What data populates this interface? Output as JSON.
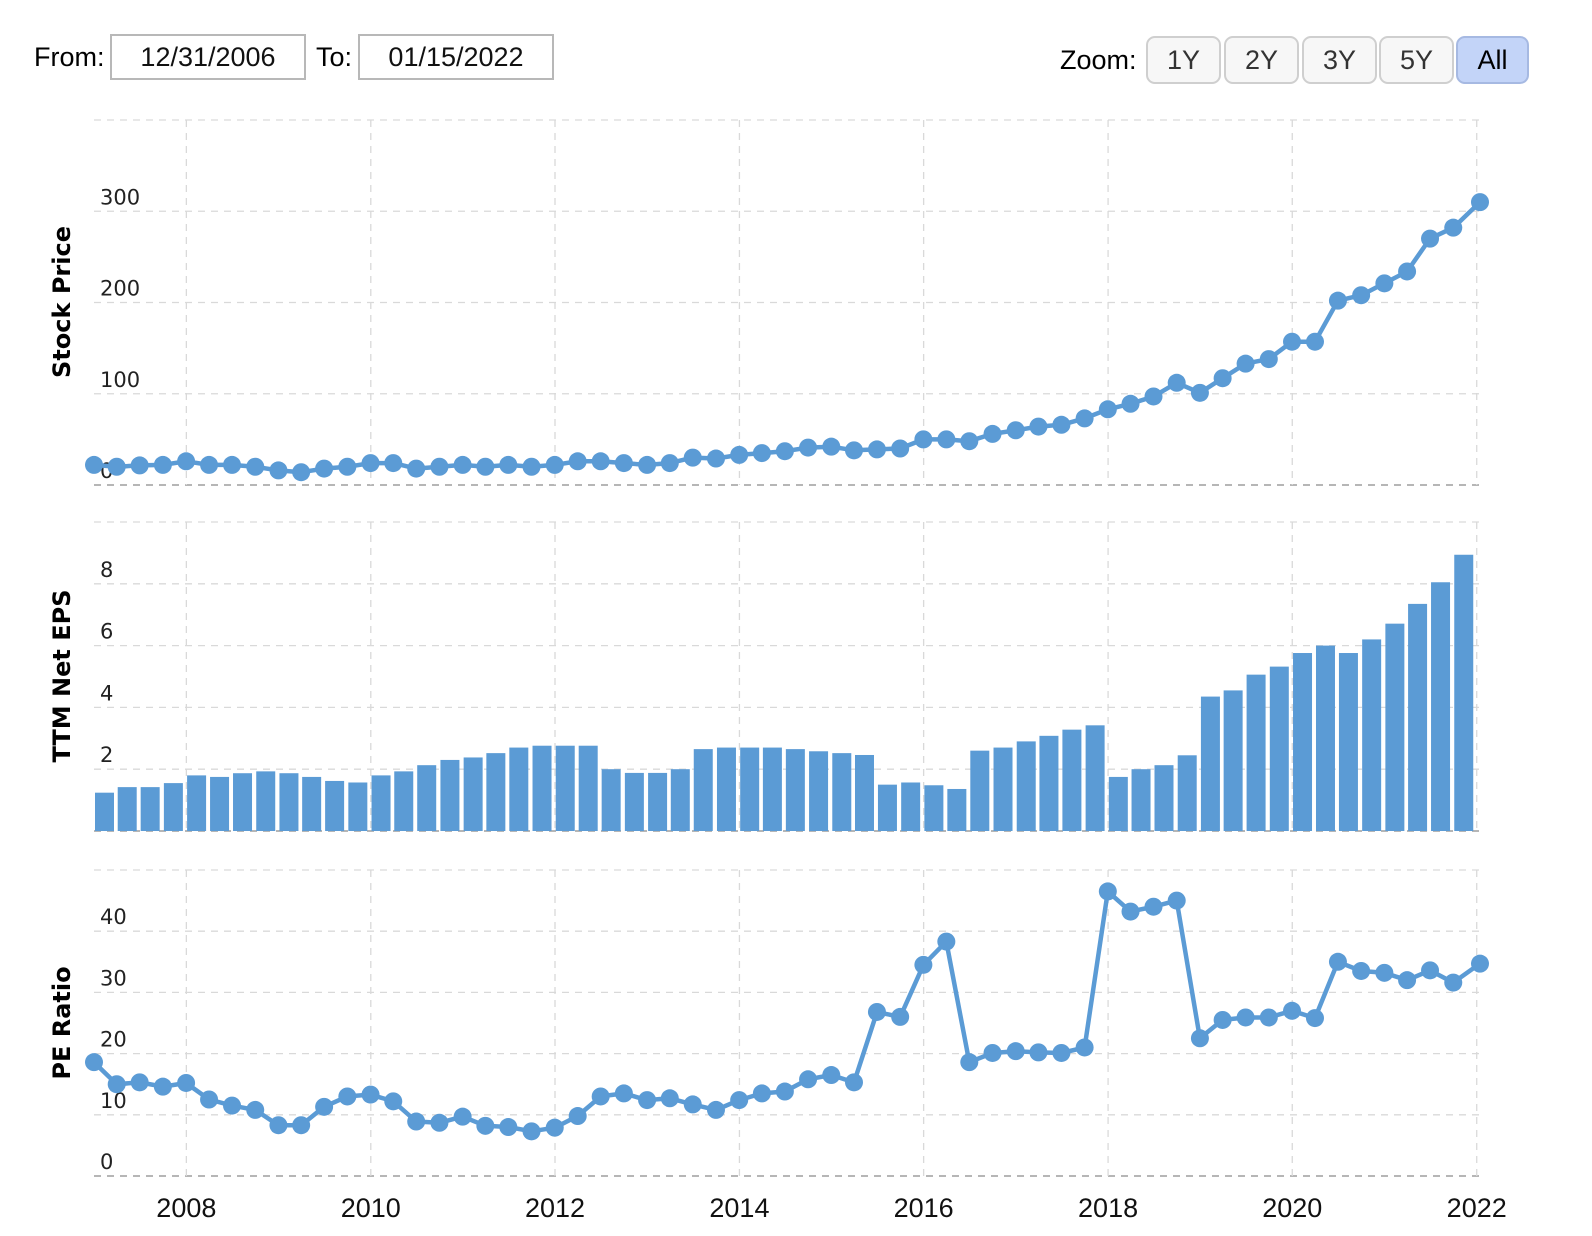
{
  "controls": {
    "from_label": "From:",
    "from_value": "12/31/2006",
    "to_label": "To:",
    "to_value": "01/15/2022",
    "zoom_label": "Zoom:",
    "zoom_options": [
      "1Y",
      "2Y",
      "3Y",
      "5Y",
      "All"
    ],
    "zoom_active": "All"
  },
  "colors": {
    "series": "#5b9bd5",
    "grid": "#d9d9d9",
    "baseline": "#9e9e9e",
    "zoom_active_bg": "#c3d4f8"
  },
  "chart_data": [
    {
      "type": "line",
      "ylabel": "Stock Price",
      "ylim": [
        0,
        400
      ],
      "yticks": [
        0,
        100,
        200,
        300
      ],
      "grid": true,
      "series": [
        {
          "name": "",
          "points": [
            [
              "2006-12-31",
              22
            ],
            [
              "2007-03-31",
              20
            ],
            [
              "2007-06-30",
              21.5
            ],
            [
              "2007-09-30",
              22
            ],
            [
              "2007-12-31",
              26
            ],
            [
              "2008-03-31",
              22
            ],
            [
              "2008-06-30",
              22
            ],
            [
              "2008-09-30",
              20
            ],
            [
              "2008-12-31",
              16
            ],
            [
              "2009-03-31",
              14
            ],
            [
              "2009-06-30",
              18
            ],
            [
              "2009-09-30",
              20
            ],
            [
              "2009-12-31",
              24
            ],
            [
              "2010-03-31",
              24
            ],
            [
              "2010-06-30",
              18
            ],
            [
              "2010-09-30",
              20
            ],
            [
              "2010-12-31",
              22
            ],
            [
              "2011-03-31",
              20
            ],
            [
              "2011-06-30",
              22
            ],
            [
              "2011-09-30",
              20
            ],
            [
              "2011-12-31",
              22
            ],
            [
              "2012-03-31",
              26
            ],
            [
              "2012-06-30",
              26
            ],
            [
              "2012-09-30",
              24
            ],
            [
              "2012-12-31",
              22
            ],
            [
              "2013-03-31",
              24
            ],
            [
              "2013-06-30",
              30
            ],
            [
              "2013-09-30",
              29
            ],
            [
              "2013-12-31",
              33
            ],
            [
              "2014-03-31",
              35
            ],
            [
              "2014-06-30",
              37
            ],
            [
              "2014-09-30",
              41
            ],
            [
              "2014-12-31",
              42
            ],
            [
              "2015-03-31",
              38
            ],
            [
              "2015-06-30",
              39
            ],
            [
              "2015-09-30",
              40
            ],
            [
              "2015-12-31",
              50
            ],
            [
              "2016-03-31",
              50
            ],
            [
              "2016-06-30",
              48
            ],
            [
              "2016-09-30",
              56
            ],
            [
              "2016-12-31",
              60
            ],
            [
              "2017-03-31",
              64
            ],
            [
              "2017-06-30",
              66
            ],
            [
              "2017-09-30",
              73
            ],
            [
              "2017-12-31",
              83
            ],
            [
              "2018-03-31",
              89
            ],
            [
              "2018-06-30",
              97
            ],
            [
              "2018-09-30",
              112
            ],
            [
              "2018-12-31",
              101
            ],
            [
              "2019-03-31",
              117
            ],
            [
              "2019-06-30",
              133
            ],
            [
              "2019-09-30",
              138
            ],
            [
              "2019-12-31",
              157
            ],
            [
              "2020-03-31",
              157
            ],
            [
              "2020-06-30",
              202
            ],
            [
              "2020-09-30",
              208
            ],
            [
              "2020-12-31",
              221
            ],
            [
              "2021-03-31",
              234
            ],
            [
              "2021-06-30",
              270
            ],
            [
              "2021-09-30",
              282
            ],
            [
              "2022-01-14",
              310
            ]
          ]
        }
      ]
    },
    {
      "type": "bar",
      "ylabel": "TTM Net EPS",
      "ylim": [
        0,
        10
      ],
      "yticks": [
        0,
        2,
        4,
        6,
        8
      ],
      "grid": true,
      "series": [
        {
          "name": "",
          "points": [
            [
              "2006-12-31",
              1.24
            ],
            [
              "2007-03-31",
              1.42
            ],
            [
              "2007-06-30",
              1.42
            ],
            [
              "2007-09-30",
              1.55
            ],
            [
              "2007-12-31",
              1.8
            ],
            [
              "2008-03-31",
              1.75
            ],
            [
              "2008-06-30",
              1.87
            ],
            [
              "2008-09-30",
              1.93
            ],
            [
              "2008-12-31",
              1.87
            ],
            [
              "2009-03-31",
              1.75
            ],
            [
              "2009-06-30",
              1.62
            ],
            [
              "2009-09-30",
              1.57
            ],
            [
              "2009-12-31",
              1.8
            ],
            [
              "2010-03-31",
              1.93
            ],
            [
              "2010-06-30",
              2.13
            ],
            [
              "2010-09-30",
              2.3
            ],
            [
              "2010-12-31",
              2.38
            ],
            [
              "2011-03-31",
              2.52
            ],
            [
              "2011-06-30",
              2.7
            ],
            [
              "2011-09-30",
              2.76
            ],
            [
              "2011-12-31",
              2.76
            ],
            [
              "2012-03-31",
              2.76
            ],
            [
              "2012-06-30",
              2.0
            ],
            [
              "2012-09-30",
              1.88
            ],
            [
              "2012-12-31",
              1.88
            ],
            [
              "2013-03-31",
              2.0
            ],
            [
              "2013-06-30",
              2.65
            ],
            [
              "2013-09-30",
              2.7
            ],
            [
              "2013-12-31",
              2.7
            ],
            [
              "2014-03-31",
              2.7
            ],
            [
              "2014-06-30",
              2.65
            ],
            [
              "2014-09-30",
              2.58
            ],
            [
              "2014-12-31",
              2.52
            ],
            [
              "2015-03-31",
              2.46
            ],
            [
              "2015-06-30",
              1.5
            ],
            [
              "2015-09-30",
              1.57
            ],
            [
              "2015-12-31",
              1.48
            ],
            [
              "2016-03-31",
              1.36
            ],
            [
              "2016-06-30",
              2.6
            ],
            [
              "2016-09-30",
              2.7
            ],
            [
              "2016-12-31",
              2.9
            ],
            [
              "2017-03-31",
              3.08
            ],
            [
              "2017-06-30",
              3.28
            ],
            [
              "2017-09-30",
              3.42
            ],
            [
              "2017-12-31",
              1.75
            ],
            [
              "2018-03-31",
              2.0
            ],
            [
              "2018-06-30",
              2.13
            ],
            [
              "2018-09-30",
              2.45
            ],
            [
              "2018-12-31",
              4.35
            ],
            [
              "2019-03-31",
              4.55
            ],
            [
              "2019-06-30",
              5.06
            ],
            [
              "2019-09-30",
              5.32
            ],
            [
              "2019-12-31",
              5.76
            ],
            [
              "2020-03-31",
              6.0
            ],
            [
              "2020-06-30",
              5.76
            ],
            [
              "2020-09-30",
              6.2
            ],
            [
              "2020-12-31",
              6.71
            ],
            [
              "2021-03-31",
              7.35
            ],
            [
              "2021-06-30",
              8.05
            ],
            [
              "2021-09-30",
              8.94
            ]
          ]
        }
      ]
    },
    {
      "type": "line",
      "ylabel": "PE Ratio",
      "ylim": [
        0,
        50
      ],
      "yticks": [
        0,
        10,
        20,
        30,
        40
      ],
      "grid": true,
      "series": [
        {
          "name": "",
          "points": [
            [
              "2006-12-31",
              18.6
            ],
            [
              "2007-03-31",
              15
            ],
            [
              "2007-06-30",
              15.3
            ],
            [
              "2007-09-30",
              14.6
            ],
            [
              "2007-12-31",
              15.2
            ],
            [
              "2008-03-31",
              12.5
            ],
            [
              "2008-06-30",
              11.5
            ],
            [
              "2008-09-30",
              10.8
            ],
            [
              "2008-12-31",
              8.3
            ],
            [
              "2009-03-31",
              8.3
            ],
            [
              "2009-06-30",
              11.3
            ],
            [
              "2009-09-30",
              13
            ],
            [
              "2009-12-31",
              13.3
            ],
            [
              "2010-03-31",
              12.2
            ],
            [
              "2010-06-30",
              8.9
            ],
            [
              "2010-09-30",
              8.7
            ],
            [
              "2010-12-31",
              9.7
            ],
            [
              "2011-03-31",
              8.2
            ],
            [
              "2011-06-30",
              8
            ],
            [
              "2011-09-30",
              7.3
            ],
            [
              "2011-12-31",
              7.9
            ],
            [
              "2012-03-31",
              9.8
            ],
            [
              "2012-06-30",
              13
            ],
            [
              "2012-09-30",
              13.5
            ],
            [
              "2012-12-31",
              12.4
            ],
            [
              "2013-03-31",
              12.7
            ],
            [
              "2013-06-30",
              11.7
            ],
            [
              "2013-09-30",
              10.8
            ],
            [
              "2013-12-31",
              12.4
            ],
            [
              "2014-03-31",
              13.5
            ],
            [
              "2014-06-30",
              13.8
            ],
            [
              "2014-09-30",
              15.8
            ],
            [
              "2014-12-31",
              16.5
            ],
            [
              "2015-03-31",
              15.3
            ],
            [
              "2015-06-30",
              26.8
            ],
            [
              "2015-09-30",
              26
            ],
            [
              "2015-12-31",
              34.5
            ],
            [
              "2016-03-31",
              38.3
            ],
            [
              "2016-06-30",
              18.6
            ],
            [
              "2016-09-30",
              20.1
            ],
            [
              "2016-12-31",
              20.4
            ],
            [
              "2017-03-31",
              20.2
            ],
            [
              "2017-06-30",
              20.1
            ],
            [
              "2017-09-30",
              21
            ],
            [
              "2017-12-31",
              46.5
            ],
            [
              "2018-03-31",
              43.2
            ],
            [
              "2018-06-30",
              44
            ],
            [
              "2018-09-30",
              45
            ],
            [
              "2018-12-31",
              22.5
            ],
            [
              "2019-03-31",
              25.5
            ],
            [
              "2019-06-30",
              25.9
            ],
            [
              "2019-09-30",
              25.9
            ],
            [
              "2019-12-31",
              27
            ],
            [
              "2020-03-31",
              25.8
            ],
            [
              "2020-06-30",
              35
            ],
            [
              "2020-09-30",
              33.5
            ],
            [
              "2020-12-31",
              33.2
            ],
            [
              "2021-03-31",
              32
            ],
            [
              "2021-06-30",
              33.6
            ],
            [
              "2021-09-30",
              31.6
            ],
            [
              "2022-01-14",
              34.7
            ]
          ]
        }
      ]
    }
  ],
  "x_axis": {
    "range": [
      "2006-12-31",
      "2022-01-14"
    ],
    "ticks": [
      {
        "date": "2008-01-01",
        "label": "2008"
      },
      {
        "date": "2010-01-01",
        "label": "2010"
      },
      {
        "date": "2012-01-01",
        "label": "2012"
      },
      {
        "date": "2014-01-01",
        "label": "2014"
      },
      {
        "date": "2016-01-01",
        "label": "2016"
      },
      {
        "date": "2018-01-01",
        "label": "2018"
      },
      {
        "date": "2020-01-01",
        "label": "2020"
      },
      {
        "date": "2022-01-01",
        "label": "2022"
      }
    ]
  }
}
